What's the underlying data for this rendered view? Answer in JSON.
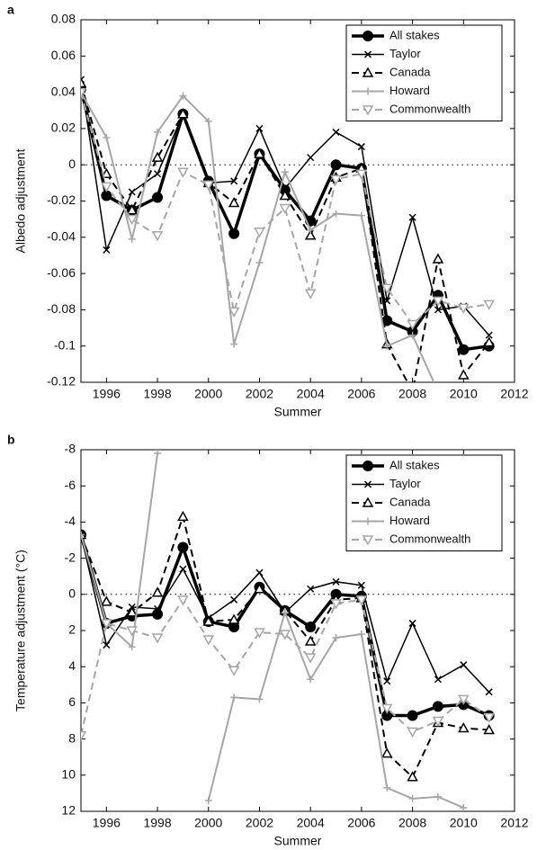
{
  "chart_data": [
    {
      "type": "line",
      "title": "a",
      "x_label": "Summer",
      "y_label": "Albedo adjustment",
      "x": [
        1995,
        1996,
        1997,
        1998,
        1999,
        2000,
        2001,
        2002,
        2003,
        2004,
        2005,
        2006,
        2007,
        2008,
        2009,
        2010,
        2011
      ],
      "xlim": [
        1995,
        2012
      ],
      "xticks": [
        1996,
        1998,
        2000,
        2002,
        2004,
        2006,
        2008,
        2010,
        2012
      ],
      "ylim": [
        -0.12,
        0.08
      ],
      "yticks": [
        0.08,
        0.06,
        0.04,
        0.02,
        0,
        -0.02,
        -0.04,
        -0.06,
        -0.08,
        -0.1,
        -0.12
      ],
      "zero_line": 0,
      "legend": "upper right",
      "series": [
        {
          "name": "All stakes",
          "color": "#000000",
          "dash": false,
          "marker": "circle",
          "linewidth": 3.5,
          "values": [
            0.042,
            -0.017,
            -0.025,
            -0.018,
            0.028,
            -0.009,
            -0.038,
            0.006,
            -0.014,
            -0.031,
            0.0,
            -0.002,
            -0.086,
            -0.092,
            -0.072,
            -0.102,
            -0.1
          ]
        },
        {
          "name": "Taylor",
          "color": "#000000",
          "dash": false,
          "marker": "x",
          "linewidth": 1.5,
          "values": [
            0.047,
            -0.047,
            -0.015,
            -0.005,
            0.028,
            -0.01,
            -0.009,
            0.02,
            -0.013,
            0.004,
            0.018,
            0.01,
            -0.075,
            -0.029,
            -0.08,
            -0.078,
            -0.094
          ]
        },
        {
          "name": "Canada",
          "color": "#000000",
          "dash": true,
          "marker": "triangle-up",
          "linewidth": 2,
          "values": [
            0.045,
            -0.005,
            -0.025,
            0.004,
            0.028,
            -0.01,
            -0.021,
            0.006,
            -0.017,
            -0.039,
            -0.007,
            -0.002,
            -0.099,
            -0.125,
            -0.052,
            -0.116,
            -0.098
          ]
        },
        {
          "name": "Howard",
          "color": "#a6a6a6",
          "dash": false,
          "marker": "plus",
          "linewidth": 2,
          "values": [
            0.04,
            0.015,
            -0.041,
            0.018,
            0.038,
            0.024,
            -0.099,
            -0.054,
            -0.004,
            -0.036,
            -0.027,
            -0.028,
            -0.1,
            -0.094,
            -0.125,
            null,
            null
          ]
        },
        {
          "name": "Commonwealth",
          "color": "#a6a6a6",
          "dash": true,
          "marker": "triangle-down",
          "linewidth": 2,
          "values": [
            0.04,
            -0.012,
            -0.03,
            -0.039,
            -0.004,
            -0.011,
            -0.081,
            -0.037,
            -0.024,
            -0.071,
            -0.008,
            -0.005,
            -0.068,
            -0.088,
            -0.075,
            -0.079,
            -0.077
          ]
        }
      ]
    },
    {
      "type": "line",
      "title": "b",
      "x_label": "Summer",
      "y_label": "Temperature adjustment (°C)",
      "x": [
        1995,
        1996,
        1997,
        1998,
        1999,
        2000,
        2001,
        2002,
        2003,
        2004,
        2005,
        2006,
        2007,
        2008,
        2009,
        2010,
        2011
      ],
      "xlim": [
        1995,
        2012
      ],
      "xticks": [
        1996,
        1998,
        2000,
        2002,
        2004,
        2006,
        2008,
        2010,
        2012
      ],
      "ylim": [
        12,
        -8
      ],
      "yticks": [
        -8,
        -6,
        -4,
        -2,
        0,
        2,
        4,
        6,
        8,
        10,
        12
      ],
      "zero_line": 0,
      "legend": "upper right",
      "series": [
        {
          "name": "All stakes",
          "color": "#000000",
          "dash": false,
          "marker": "circle",
          "linewidth": 3.5,
          "values": [
            -3.3,
            1.6,
            1.2,
            1.1,
            -2.6,
            1.5,
            1.8,
            -0.4,
            0.9,
            1.8,
            0.0,
            0.1,
            6.7,
            6.7,
            6.2,
            6.1,
            6.7
          ]
        },
        {
          "name": "Taylor",
          "color": "#000000",
          "dash": false,
          "marker": "x",
          "linewidth": 1.5,
          "values": [
            -3.3,
            2.8,
            0.7,
            0.8,
            -1.4,
            1.3,
            0.3,
            -1.2,
            1.0,
            -0.3,
            -0.7,
            -0.5,
            4.8,
            1.6,
            4.7,
            3.9,
            5.4
          ]
        },
        {
          "name": "Canada",
          "color": "#000000",
          "dash": true,
          "marker": "triangle-up",
          "linewidth": 2,
          "values": [
            -3.3,
            0.4,
            1.0,
            -0.1,
            -4.3,
            1.5,
            1.4,
            -0.3,
            0.9,
            2.6,
            0.3,
            0.2,
            8.8,
            10.1,
            7.1,
            7.4,
            7.5
          ]
        },
        {
          "name": "Howard",
          "color": "#a6a6a6",
          "dash": false,
          "marker": "plus",
          "linewidth": 2,
          "values": [
            -3.3,
            1.6,
            2.9,
            -7.8,
            null,
            11.4,
            5.7,
            5.8,
            1.0,
            4.7,
            2.4,
            2.2,
            10.7,
            11.3,
            11.2,
            11.8,
            null
          ]
        },
        {
          "name": "Commonwealth",
          "color": "#a6a6a6",
          "dash": true,
          "marker": "triangle-down",
          "linewidth": 2,
          "values": [
            7.8,
            1.6,
            2.0,
            2.4,
            0.3,
            2.5,
            4.2,
            2.1,
            2.2,
            3.5,
            0.5,
            0.3,
            6.3,
            7.6,
            7.0,
            5.8,
            6.8
          ]
        }
      ]
    }
  ]
}
